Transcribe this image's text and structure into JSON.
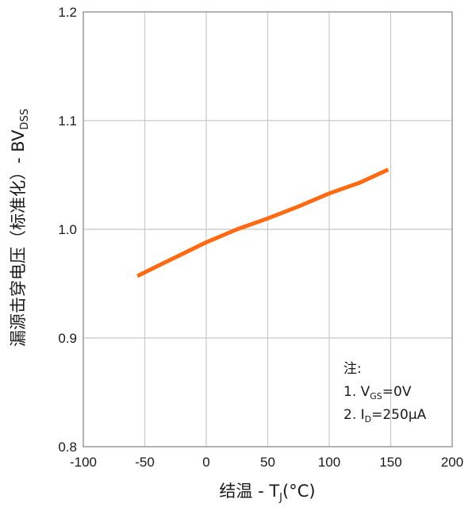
{
  "chart_data": {
    "type": "line",
    "xlabel": {
      "main": "结温 - T",
      "sub": "J",
      "unit": "(°C)"
    },
    "ylabel": {
      "main": "漏源击穿电压（标准化）- BV",
      "sub": "DSS"
    },
    "xlim": [
      -100,
      200
    ],
    "ylim": [
      0.8,
      1.2
    ],
    "xticks": [
      "-100",
      "-50",
      "0",
      "50",
      "100",
      "150",
      "200"
    ],
    "yticks": [
      "0.8",
      "0.9",
      "1.0",
      "1.1",
      "1.2"
    ],
    "grid": true,
    "series": [
      {
        "color": "#ff6a13",
        "x": [
          -56,
          -40,
          -20,
          0,
          25,
          50,
          75,
          100,
          125,
          148
        ],
        "y": [
          0.957,
          0.966,
          0.977,
          0.988,
          1.0,
          1.01,
          1.021,
          1.033,
          1.043,
          1.055
        ]
      }
    ],
    "annotation": {
      "title": "注:",
      "lines": [
        {
          "pre": "1. V",
          "sub": "GS",
          "post": "=0V"
        },
        {
          "pre": "2. I",
          "sub": "D",
          "post": "=250μA"
        }
      ]
    }
  },
  "colors": {
    "grid": "#c8c8c8",
    "axis": "#9a9a9a",
    "line": "#ff6a13"
  }
}
